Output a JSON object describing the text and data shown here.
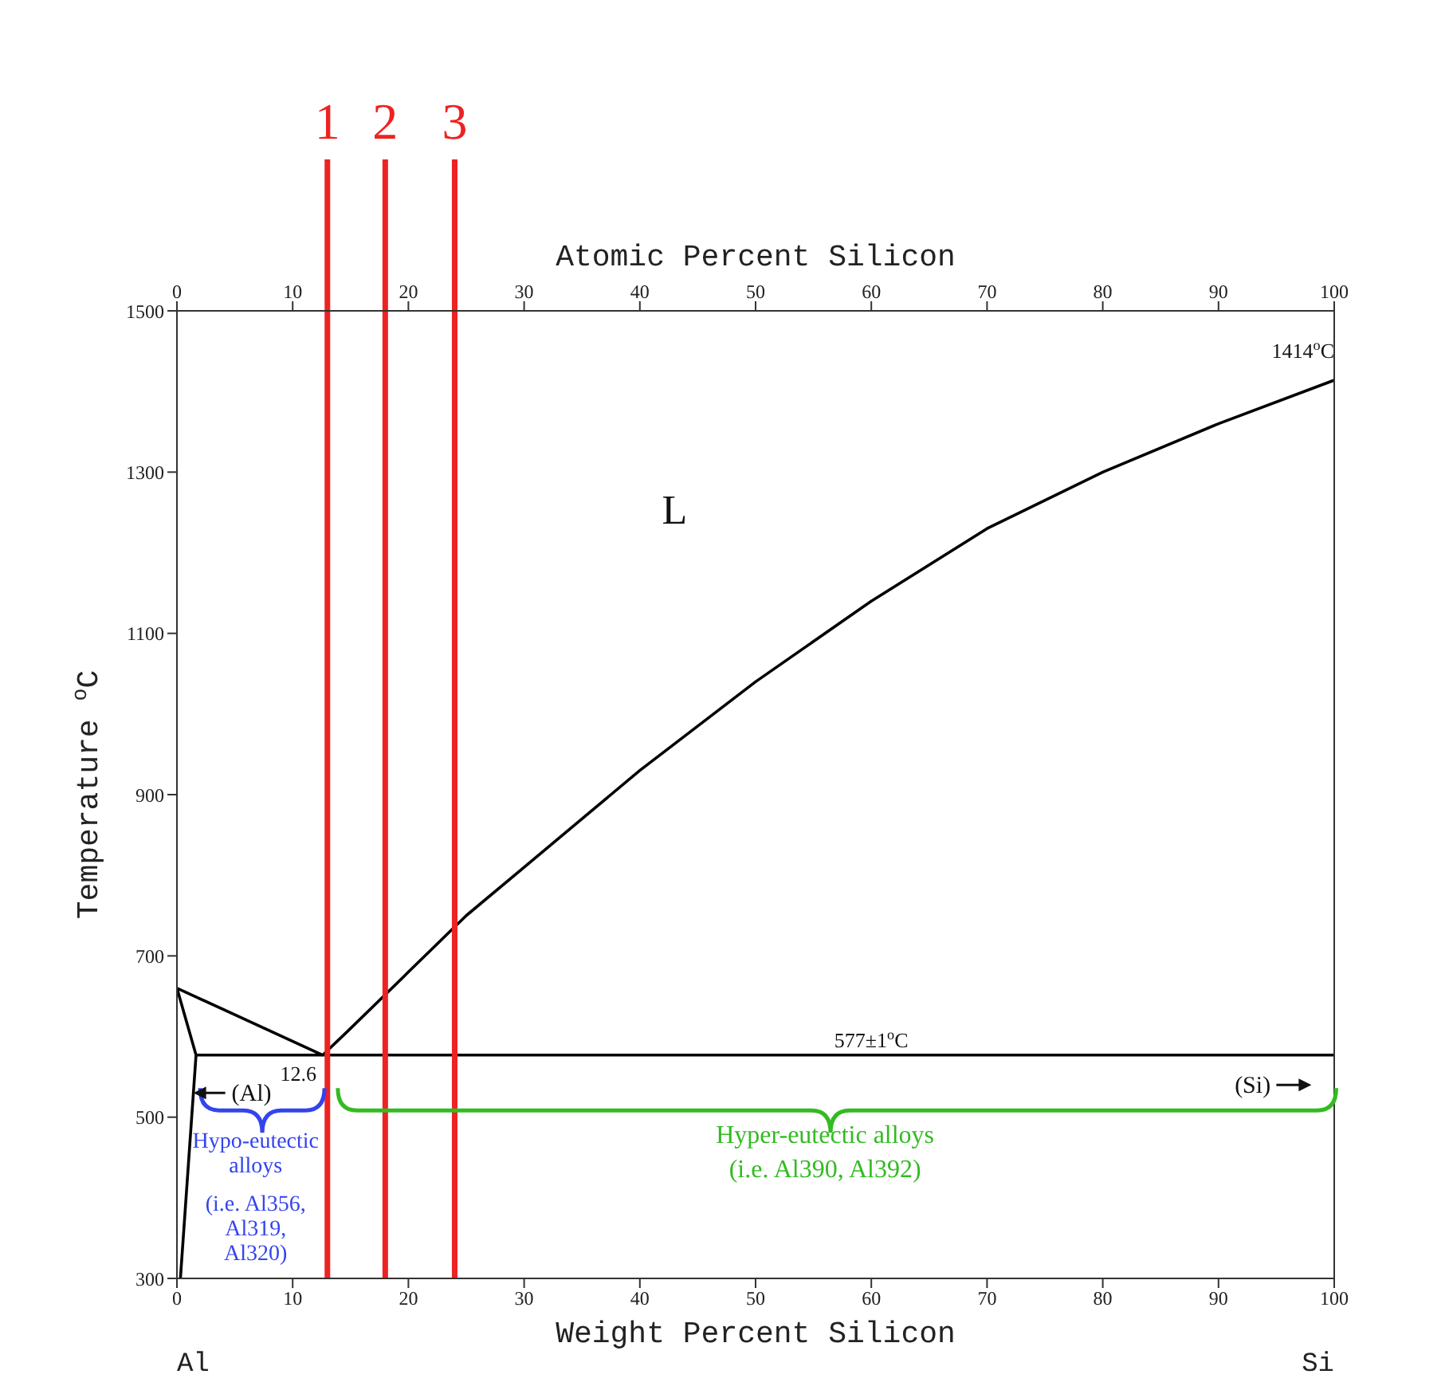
{
  "chart_data": {
    "type": "line",
    "xlabel": "Weight Percent Silicon",
    "x2label": "Atomic Percent Silicon",
    "ylabel": "Temperature $^{o}$C",
    "xlim": [
      0,
      100
    ],
    "xticks": [
      0,
      10,
      20,
      30,
      40,
      50,
      60,
      70,
      80,
      90,
      100
    ],
    "x2lim": [
      0,
      100
    ],
    "x2ticks": [
      0,
      10,
      20,
      30,
      40,
      50,
      60,
      70,
      80,
      90,
      100
    ],
    "ylim": [
      300,
      1500
    ],
    "yticks": [
      300,
      500,
      700,
      900,
      1100,
      1300,
      1500
    ],
    "marker": "none",
    "line_style": "solid",
    "grid": false,
    "series": [
      {
        "color": "#000000",
        "x": [
          0,
          12.6
        ],
        "values": [
          660,
          577
        ]
      },
      {
        "color": "#000000",
        "x": [
          12.6,
          15,
          20,
          25,
          30,
          40,
          50,
          60,
          70,
          80,
          90,
          100
        ],
        "values": [
          577,
          610,
          680,
          750,
          810,
          930,
          1040,
          1140,
          1230,
          1300,
          1360,
          1414
        ]
      },
      {
        "color": "#000000",
        "x": [
          1.65,
          100
        ],
        "values": [
          577,
          577
        ]
      },
      {
        "color": "#000000",
        "x": [
          0,
          1.65,
          0.3
        ],
        "values": [
          660,
          577,
          300
        ]
      }
    ],
    "ref_lines": [
      {
        "axis": "x",
        "value": 13,
        "color": "#ee2222"
      },
      {
        "axis": "x",
        "value": 18,
        "color": "#ee2222"
      },
      {
        "axis": "x",
        "value": 24,
        "color": "#ee2222"
      }
    ],
    "annotations": [
      {
        "text": "1414$^{o}$C",
        "x": 100,
        "y": 1414
      },
      {
        "text": "577±1$^{o}$C",
        "x": 60,
        "y": 577
      },
      {
        "text": "12.6",
        "x": 12.6,
        "y": 577
      },
      {
        "text": "(Al)",
        "x": 1.42,
        "y": 530
      },
      "(Si)",
      "1",
      "2",
      "3",
      "L",
      "Hypo-eutectic alloys",
      "(i.e. Al356, Al319, Al320)",
      "Hyper-eutectic alloys",
      "(i.e. Al390, Al392)",
      "Al",
      "Si"
    ]
  }
}
